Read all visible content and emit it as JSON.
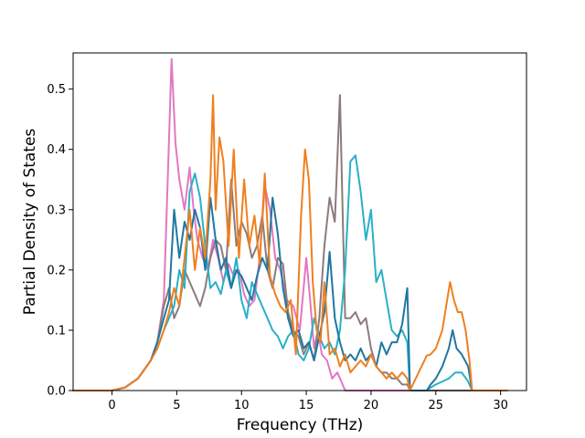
{
  "chart_data": {
    "type": "line",
    "title": "",
    "xlabel": "Frequency (THz)",
    "ylabel": "Partial Density of States",
    "xlim": [
      -3,
      32
    ],
    "ylim": [
      0,
      0.56
    ],
    "xticks": [
      0,
      5,
      10,
      15,
      20,
      25,
      30
    ],
    "yticks": [
      0.0,
      0.1,
      0.2,
      0.3,
      0.4,
      0.5
    ],
    "xtick_labels": [
      "0",
      "5",
      "10",
      "15",
      "20",
      "25",
      "30"
    ],
    "ytick_labels": [
      "0.0",
      "0.1",
      "0.2",
      "0.3",
      "0.4",
      "0.5"
    ],
    "grid": false,
    "legend": "none",
    "series": [
      {
        "color": "#e377c2",
        "x": [
          -3,
          0,
          1,
          2,
          3,
          3.5,
          4,
          4.3,
          4.6,
          4.9,
          5.2,
          5.6,
          6,
          6.3,
          6.6,
          7,
          7.4,
          7.8,
          8.2,
          8.6,
          9,
          9.4,
          9.8,
          10.2,
          10.6,
          11,
          11.4,
          11.8,
          12.2,
          12.6,
          13,
          13.5,
          14,
          14.5,
          15,
          15.3,
          15.6,
          15.9,
          16.2,
          16.6,
          17,
          17.4,
          17.8,
          18,
          30.5
        ],
        "y": [
          0,
          0,
          0.005,
          0.02,
          0.05,
          0.08,
          0.15,
          0.35,
          0.55,
          0.41,
          0.35,
          0.3,
          0.37,
          0.3,
          0.25,
          0.22,
          0.2,
          0.25,
          0.22,
          0.18,
          0.21,
          0.19,
          0.2,
          0.16,
          0.14,
          0.15,
          0.22,
          0.34,
          0.3,
          0.22,
          0.2,
          0.15,
          0.14,
          0.1,
          0.22,
          0.15,
          0.07,
          0.1,
          0.06,
          0.05,
          0.02,
          0.03,
          0.01,
          0,
          0
        ]
      },
      {
        "color": "#8c7b7b",
        "x": [
          -3,
          0,
          1,
          2,
          3,
          3.5,
          4,
          4.4,
          4.8,
          5.2,
          5.6,
          6,
          6.4,
          6.8,
          7.2,
          7.6,
          8,
          8.4,
          8.8,
          9.2,
          9.6,
          10,
          10.4,
          10.8,
          11.2,
          11.6,
          12,
          12.4,
          12.8,
          13.2,
          13.6,
          14,
          14.4,
          14.8,
          15.2,
          15.6,
          16,
          16.4,
          16.8,
          17.2,
          17.6,
          17.8,
          18,
          18.4,
          18.8,
          19.2,
          19.6,
          20,
          20.4,
          20.8,
          21.2,
          21.6,
          22,
          22.4,
          22.8,
          23,
          30.5
        ],
        "y": [
          0,
          0,
          0.005,
          0.02,
          0.05,
          0.08,
          0.14,
          0.17,
          0.12,
          0.14,
          0.2,
          0.18,
          0.16,
          0.14,
          0.17,
          0.22,
          0.25,
          0.24,
          0.2,
          0.35,
          0.24,
          0.28,
          0.26,
          0.22,
          0.24,
          0.29,
          0.2,
          0.17,
          0.22,
          0.21,
          0.13,
          0.1,
          0.09,
          0.06,
          0.08,
          0.05,
          0.12,
          0.24,
          0.32,
          0.28,
          0.49,
          0.3,
          0.12,
          0.12,
          0.13,
          0.11,
          0.12,
          0.07,
          0.04,
          0.03,
          0.03,
          0.02,
          0.02,
          0.01,
          0.01,
          0,
          0
        ]
      },
      {
        "color": "#2ab0c8",
        "x": [
          -3,
          0,
          1,
          2,
          3,
          3.5,
          4,
          4.4,
          4.8,
          5.2,
          5.6,
          6,
          6.4,
          6.8,
          7.2,
          7.6,
          8,
          8.4,
          8.8,
          9.2,
          9.6,
          10,
          10.4,
          10.8,
          11.2,
          11.6,
          12,
          12.4,
          12.8,
          13.2,
          13.6,
          14,
          14.4,
          14.8,
          15.2,
          15.6,
          16,
          16.4,
          16.8,
          17.2,
          17.6,
          18,
          18.4,
          18.8,
          19.2,
          19.6,
          20,
          20.4,
          20.8,
          21.2,
          21.6,
          22,
          22.4,
          22.8,
          23,
          24.3,
          24.6,
          25,
          25.5,
          26,
          26.5,
          27,
          27.5,
          27.8,
          30.5
        ],
        "y": [
          0,
          0,
          0.005,
          0.02,
          0.05,
          0.07,
          0.1,
          0.12,
          0.14,
          0.2,
          0.17,
          0.33,
          0.36,
          0.32,
          0.24,
          0.17,
          0.18,
          0.16,
          0.2,
          0.17,
          0.22,
          0.15,
          0.12,
          0.18,
          0.16,
          0.14,
          0.12,
          0.1,
          0.09,
          0.07,
          0.09,
          0.1,
          0.06,
          0.05,
          0.07,
          0.12,
          0.09,
          0.07,
          0.08,
          0.06,
          0.1,
          0.2,
          0.38,
          0.39,
          0.33,
          0.25,
          0.3,
          0.18,
          0.2,
          0.15,
          0.1,
          0.09,
          0.1,
          0.08,
          0,
          0,
          0.005,
          0.01,
          0.015,
          0.02,
          0.03,
          0.03,
          0.015,
          0,
          0
        ]
      },
      {
        "color": "#1f77a0",
        "x": [
          -3,
          0,
          1,
          2,
          3,
          3.5,
          4,
          4.4,
          4.8,
          5.2,
          5.6,
          6,
          6.4,
          6.8,
          7.2,
          7.6,
          8,
          8.4,
          8.8,
          9.2,
          9.6,
          10,
          10.4,
          10.8,
          11.2,
          11.6,
          12,
          12.4,
          12.8,
          13.2,
          13.6,
          14,
          14.4,
          14.8,
          15.2,
          15.6,
          16,
          16.4,
          16.8,
          17.2,
          17.6,
          18,
          18.4,
          18.8,
          19.2,
          19.6,
          20,
          20.4,
          20.8,
          21.2,
          21.6,
          22,
          22.4,
          22.8,
          23,
          24.3,
          24.6,
          25,
          25.5,
          26,
          26.3,
          26.6,
          27,
          27.5,
          27.8,
          30.5
        ],
        "y": [
          0,
          0,
          0.005,
          0.02,
          0.05,
          0.08,
          0.12,
          0.15,
          0.3,
          0.22,
          0.28,
          0.25,
          0.3,
          0.27,
          0.2,
          0.32,
          0.25,
          0.2,
          0.22,
          0.17,
          0.2,
          0.19,
          0.17,
          0.15,
          0.19,
          0.22,
          0.2,
          0.32,
          0.26,
          0.17,
          0.12,
          0.09,
          0.1,
          0.07,
          0.08,
          0.05,
          0.09,
          0.13,
          0.23,
          0.12,
          0.08,
          0.05,
          0.06,
          0.05,
          0.07,
          0.05,
          0.06,
          0.04,
          0.08,
          0.06,
          0.08,
          0.08,
          0.11,
          0.17,
          0,
          0,
          0.01,
          0.02,
          0.04,
          0.07,
          0.1,
          0.07,
          0.06,
          0.04,
          0,
          0
        ]
      },
      {
        "color": "#f07f1e",
        "x": [
          -3,
          0,
          1,
          2,
          3,
          3.5,
          4,
          4.4,
          4.8,
          5.2,
          5.6,
          6,
          6.4,
          6.8,
          7.2,
          7.6,
          7.8,
          8,
          8.3,
          8.6,
          9,
          9.4,
          9.8,
          10.2,
          10.6,
          11,
          11.4,
          11.8,
          12.2,
          12.6,
          13,
          13.4,
          13.8,
          14.2,
          14.6,
          14.9,
          15.2,
          15.5,
          15.8,
          16.1,
          16.4,
          16.8,
          17.2,
          17.6,
          18,
          18.4,
          18.8,
          19.2,
          19.6,
          20,
          20.4,
          20.8,
          21.2,
          21.6,
          22,
          22.4,
          22.8,
          23,
          24.3,
          24.6,
          25,
          25.5,
          25.8,
          26.1,
          26.4,
          26.7,
          27,
          27.3,
          27.6,
          27.8,
          30.5
        ],
        "y": [
          0,
          0,
          0.005,
          0.02,
          0.05,
          0.07,
          0.1,
          0.13,
          0.17,
          0.14,
          0.22,
          0.3,
          0.2,
          0.27,
          0.22,
          0.35,
          0.49,
          0.3,
          0.42,
          0.38,
          0.24,
          0.4,
          0.22,
          0.35,
          0.24,
          0.29,
          0.21,
          0.36,
          0.19,
          0.16,
          0.14,
          0.13,
          0.15,
          0.06,
          0.29,
          0.4,
          0.35,
          0.18,
          0.1,
          0.08,
          0.18,
          0.06,
          0.07,
          0.04,
          0.06,
          0.03,
          0.04,
          0.05,
          0.04,
          0.06,
          0.04,
          0.03,
          0.02,
          0.03,
          0.02,
          0.03,
          0.02,
          0,
          0.058,
          0.06,
          0.07,
          0.1,
          0.14,
          0.18,
          0.15,
          0.13,
          0.13,
          0.1,
          0.05,
          0,
          0
        ]
      }
    ]
  }
}
